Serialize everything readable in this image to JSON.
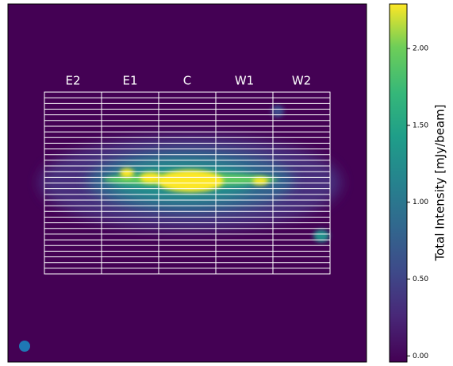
{
  "chart_data": {
    "type": "image",
    "regions": [
      "E2",
      "E1",
      "C",
      "W1",
      "W2"
    ],
    "colorbar_label": "Total Intensity [mJy/beam]",
    "clim": [
      -0.04,
      2.29
    ],
    "cticks": [
      {
        "value": 0,
        "label": "0.00"
      },
      {
        "value": 0.5,
        "label": "0.50"
      },
      {
        "value": 1,
        "label": "1.00"
      },
      {
        "value": 1.5,
        "label": "1.50"
      },
      {
        "value": 2,
        "label": "2.00"
      }
    ],
    "colormap": "viridis"
  }
}
